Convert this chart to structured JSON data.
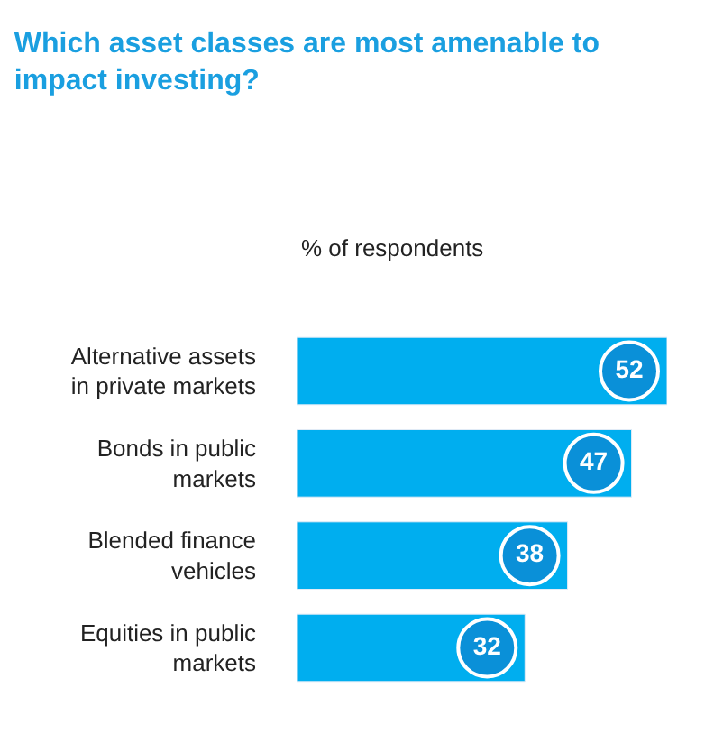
{
  "chart_data": {
    "type": "bar",
    "orientation": "horizontal",
    "title": "Which asset classes are most amenable to impact investing?",
    "subtitle": "% of respondents",
    "categories": [
      "Alternative assets in private markets",
      "Bonds in public markets",
      "Blended finance vehicles",
      "Equities in public markets"
    ],
    "values": [
      52,
      47,
      38,
      32
    ],
    "color": "#00aeef",
    "data_labels": true
  }
}
